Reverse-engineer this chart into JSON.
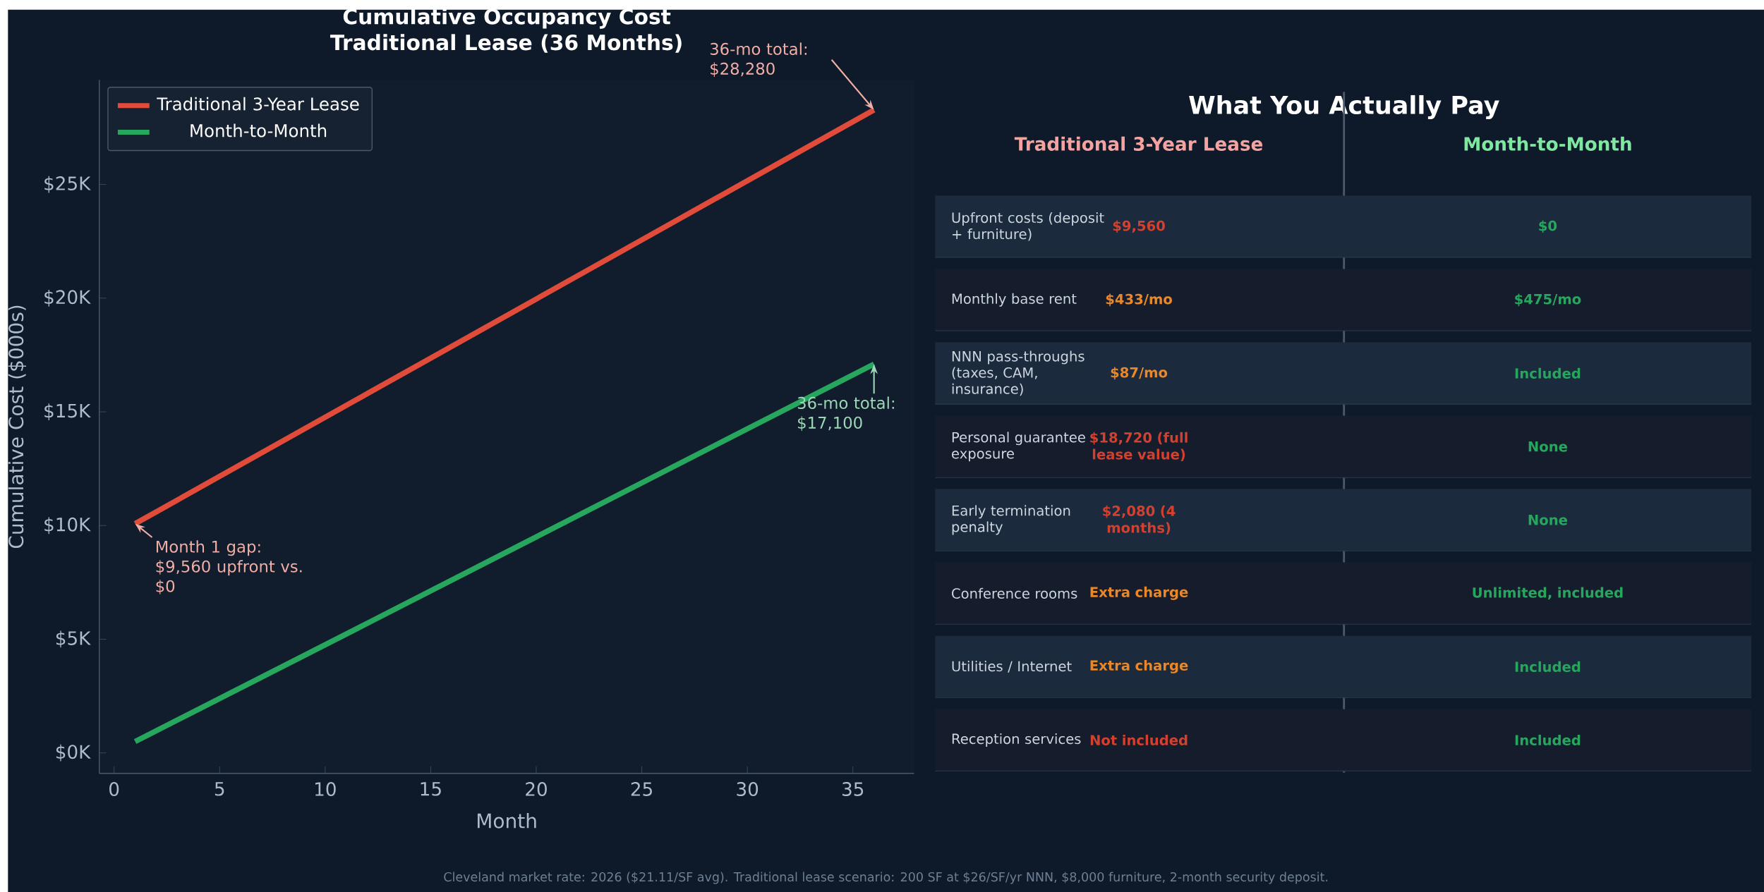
{
  "chart_data": [
    {
      "type": "line",
      "title": "Cumulative Occupancy Cost",
      "subtitle": "Traditional Lease (36 Months)",
      "xlabel": "Month",
      "ylabel": "Cumulative Cost ($000s)",
      "xlim": [
        -0.7,
        37.9
      ],
      "ylim": [
        -0.9,
        29.6
      ],
      "xticks": [
        0,
        5,
        10,
        15,
        20,
        25,
        30,
        35
      ],
      "yticks": [
        {
          "value": 0,
          "label": "$0K"
        },
        {
          "value": 5,
          "label": "$5K"
        },
        {
          "value": 10,
          "label": "$10K"
        },
        {
          "value": 15,
          "label": "$15K"
        },
        {
          "value": 20,
          "label": "$20K"
        },
        {
          "value": 25,
          "label": "$25K"
        }
      ],
      "series": [
        {
          "name": "Traditional 3-Year Lease",
          "color": "#e04b3a",
          "x": [
            1,
            12,
            24,
            36
          ],
          "values": [
            10.08,
            15.8,
            22.04,
            28.28
          ]
        },
        {
          "name": "Month-to-Month",
          "color": "#27a65e",
          "x": [
            1,
            12,
            24,
            36
          ],
          "values": [
            0.5,
            5.7,
            11.4,
            17.1
          ]
        }
      ],
      "legend": "top left",
      "grid": false,
      "marker": "none",
      "line_style": "solid",
      "annotations": [
        "36-mo total: $28,280",
        {
          "text": "Month 1 gap: $9,560 upfront vs. $0",
          "x": 1,
          "y": 10.08
        },
        {
          "text": "36-mo total: $17,100",
          "x": 36,
          "y": 17.1
        },
        "Cleveland market rate: 2026 ($21.11/SF avg). Traditional lease scenario: 200 SF at $26/SF/yr NNN, $8,000 furniture, 2-month security deposit."
      ]
    },
    {
      "type": "other",
      "title": "What You Actually Pay",
      "categories": [
        "Upfront costs (deposit + furniture)",
        "Monthly base rent",
        "NNN pass-throughs (taxes, CAM, insurance)",
        "Personal guarantee exposure",
        "Early termination penalty",
        "Conference rooms",
        "Utilities / Internet",
        "Reception services"
      ],
      "annotations": [
        "Traditional 3-Year Lease",
        "Month-to-Month",
        "$9,560",
        "$0",
        "$433/mo",
        "$475/mo",
        "$87/mo",
        "Included",
        "$18,720 (full lease value)",
        "None",
        "$2,080 (4 months)",
        "None",
        "Extra charge",
        "Unlimited, included",
        "Extra charge",
        "Included",
        "Not included",
        "Included"
      ]
    }
  ]
}
